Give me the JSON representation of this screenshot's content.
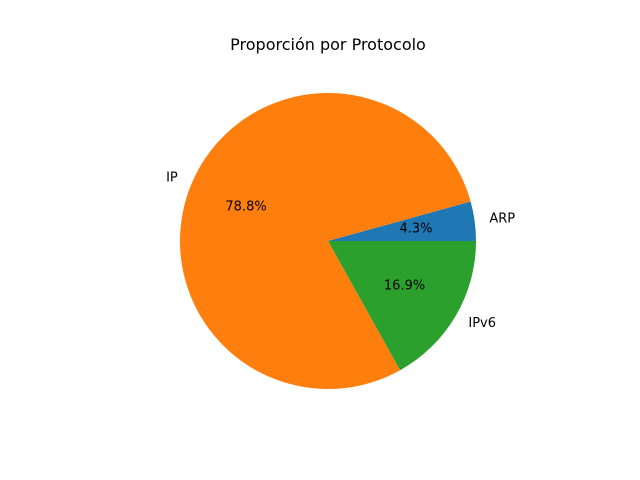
{
  "chart_data": {
    "type": "pie",
    "title": "Proporción por Protocolo",
    "categories": [
      "ARP",
      "IP",
      "IPv6"
    ],
    "values": [
      4.3,
      78.8,
      16.9
    ],
    "value_labels": [
      "4.3%",
      "78.8%",
      "16.9%"
    ],
    "colors": [
      "#1f77b4",
      "#ff7f0e",
      "#2ca02c"
    ],
    "start_angle_deg": 0,
    "direction": "counterclockwise",
    "legend": "none"
  }
}
